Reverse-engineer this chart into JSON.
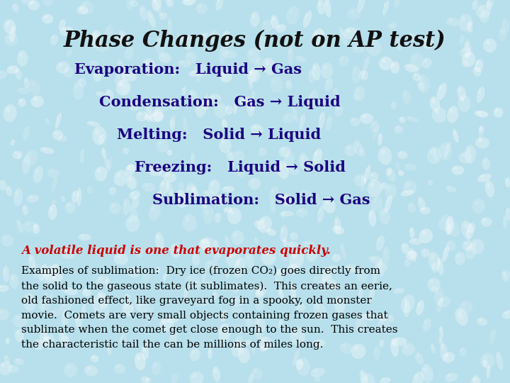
{
  "title": "Phase Changes (not on AP test)",
  "title_color": "#111111",
  "title_style": "italic",
  "title_fontsize": 22,
  "bg_color": "#b8e0ec",
  "phase_lines": [
    "Evaporation:   Liquid → Gas",
    "Condensation:   Gas → Liquid",
    "Melting:   Solid → Liquid",
    "Freezing:   Liquid → Solid",
    "Sublimation:   Solid → Gas"
  ],
  "phase_color": "#1a0080",
  "phase_fontsize": 15,
  "volatile_line": "A volatile liquid is one that evaporates quickly.",
  "volatile_color": "#cc0000",
  "volatile_fontsize": 12,
  "examples_text": "Examples of sublimation:  Dry ice (frozen CO₂) goes directly from\nthe solid to the gaseous state (it sublimates).  This creates an eerie,\nold fashioned effect, like graveyard fog in a spooky, old monster\nmovie.  Comets are very small objects containing frozen gases that\nsublimate when the comet get close enough to the sun.  This creates\nthe characteristic tail the can be millions of miles long.",
  "examples_color": "#000000",
  "examples_fontsize": 11,
  "drop_color": "#c8ecf8",
  "drop_edge_color": "#a0cce0"
}
